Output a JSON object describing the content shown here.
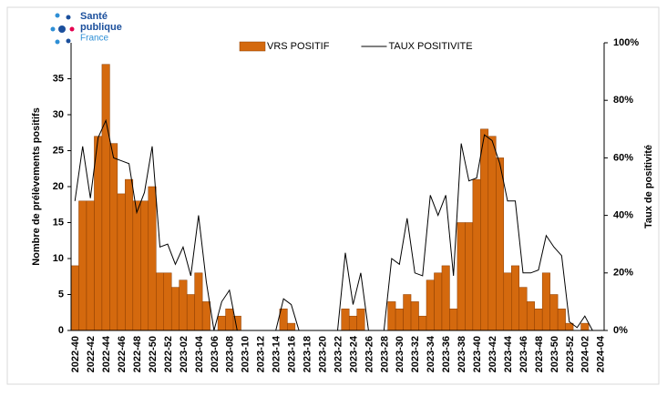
{
  "logo": {
    "lines": [
      "Santé",
      "publique",
      "France"
    ]
  },
  "chart_data": {
    "type": "bar",
    "y_label": "Nombre de prélèvements positifs",
    "y2_label": "Taux de positivité",
    "legend": "top",
    "categories": [
      "2022-40",
      null,
      "2022-42",
      null,
      "2022-44",
      null,
      "2022-46",
      null,
      "2022-48",
      null,
      "2022-50",
      null,
      "2022-52",
      null,
      "2023-02",
      null,
      "2023-04",
      null,
      "2023-06",
      null,
      "2023-08",
      null,
      "2023-10",
      null,
      "2023-12",
      null,
      "2023-14",
      null,
      "2023-16",
      null,
      "2023-18",
      null,
      "2023-20",
      null,
      "2023-22",
      null,
      "2023-24",
      null,
      "2023-26",
      null,
      "2023-28",
      null,
      "2023-30",
      null,
      "2023-32",
      null,
      "2023-34",
      null,
      "2023-36",
      null,
      "2023-38",
      null,
      "2023-40",
      null,
      "2023-42",
      null,
      "2023-44",
      null,
      "2023-46",
      null,
      "2023-48",
      null,
      "2023-50",
      null,
      "2023-52",
      null,
      "2024-02",
      null,
      "2024-04"
    ],
    "series": [
      {
        "name": "VRS POSITIF",
        "type": "bar",
        "color": "#d4690e",
        "values": [
          9,
          18,
          18,
          27,
          37,
          26,
          19,
          21,
          18,
          18,
          20,
          8,
          8,
          6,
          7,
          5,
          8,
          4,
          0,
          2,
          3,
          2,
          0,
          0,
          0,
          0,
          0,
          3,
          1,
          0,
          0,
          0,
          0,
          0,
          0,
          3,
          2,
          3,
          0,
          0,
          0,
          4,
          3,
          5,
          4,
          2,
          7,
          8,
          9,
          3,
          15,
          15,
          21,
          28,
          27,
          24,
          8,
          9,
          6,
          4,
          3,
          8,
          5,
          3,
          1,
          0,
          1,
          0,
          0
        ]
      },
      {
        "name": "TAUX POSITIVITE",
        "type": "line",
        "axis": "y2",
        "color": "#000000",
        "values": [
          45,
          64,
          46,
          67,
          73,
          60,
          59,
          58,
          41,
          48,
          64,
          29,
          30,
          23,
          29,
          19,
          40,
          17,
          0,
          10,
          14,
          0,
          0,
          0,
          0,
          0,
          0,
          11,
          9,
          0,
          0,
          0,
          0,
          0,
          0,
          27,
          9,
          20,
          0,
          0,
          0,
          25,
          23,
          39,
          20,
          19,
          47,
          40,
          47,
          19,
          65,
          52,
          53,
          68,
          66,
          58,
          45,
          45,
          20,
          20,
          21,
          33,
          29,
          26,
          3,
          1,
          5,
          0,
          null
        ]
      }
    ],
    "ylim": [
      0,
      40
    ],
    "yticks": [
      0,
      5,
      10,
      15,
      20,
      25,
      30,
      35
    ],
    "y2lim": [
      0,
      100
    ],
    "y2ticks": [
      {
        "value": 0,
        "label": "0%"
      },
      {
        "value": 20,
        "label": "20%"
      },
      {
        "value": 40,
        "label": "40%"
      },
      {
        "value": 60,
        "label": "60%"
      },
      {
        "value": 80,
        "label": "80%"
      },
      {
        "value": 100,
        "label": "100%"
      }
    ]
  }
}
